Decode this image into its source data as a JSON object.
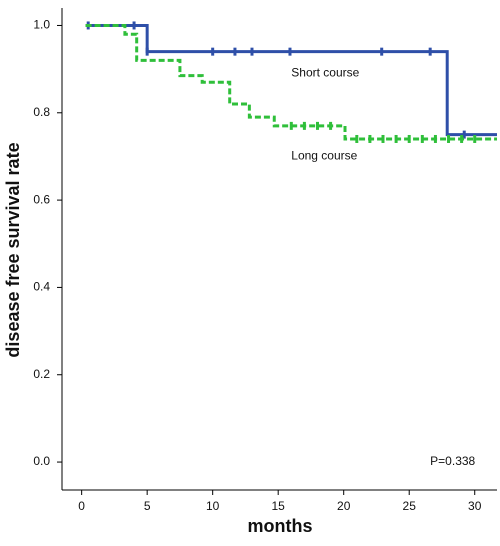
{
  "chart_data": {
    "type": "step",
    "xlabel": "months",
    "ylabel": "disease free survival rate",
    "xlim": [
      -1.5,
      31.7
    ],
    "xticks": [
      0,
      5,
      10,
      15,
      20,
      25,
      30
    ],
    "ylim": [
      -0.064,
      1.04
    ],
    "yticks": [
      {
        "value": 0,
        "label": "0.0"
      },
      {
        "value": 0.2,
        "label": "0.2"
      },
      {
        "value": 0.4,
        "label": "0.4"
      },
      {
        "value": 0.6,
        "label": "0.6"
      },
      {
        "value": 0.8,
        "label": "0.8"
      },
      {
        "value": 1,
        "label": "1.0"
      }
    ],
    "series": [
      {
        "name": "Short course",
        "color": "#2e4fa8",
        "dash": false,
        "x": [
          0.3,
          5,
          27.9
        ],
        "values": [
          1,
          0.94,
          0.75
        ],
        "censored_x": [
          0.5,
          4,
          5,
          10,
          11.7,
          13,
          15.9,
          22.9,
          26.6,
          29.2
        ],
        "censored_values": [
          1,
          1,
          0.94,
          0.94,
          0.94,
          0.94,
          0.94,
          0.94,
          0.94,
          0.75
        ]
      },
      {
        "name": "Long course",
        "color": "#2fbf3a",
        "dash": true,
        "x": [
          0.3,
          3.3,
          4.2,
          7.5,
          9.2,
          11.3,
          12.8,
          14.7,
          20.1
        ],
        "values": [
          1,
          0.98,
          0.92,
          0.885,
          0.87,
          0.82,
          0.79,
          0.77,
          0.74
        ],
        "censored_x": [
          16,
          17,
          18,
          19,
          21,
          22,
          23,
          24,
          25,
          26,
          27,
          28,
          29,
          30
        ],
        "censored_values": [
          0.77,
          0.77,
          0.77,
          0.77,
          0.74,
          0.74,
          0.74,
          0.74,
          0.74,
          0.74,
          0.74,
          0.74,
          0.74,
          0.74
        ]
      }
    ],
    "annotations": [
      {
        "text": "Short course",
        "x": 16,
        "y": 0.89
      },
      {
        "text": "Long course",
        "x": 16,
        "y": 0.7
      },
      {
        "text": "P=0.338",
        "x": 26.6,
        "y": 0.0
      }
    ]
  }
}
